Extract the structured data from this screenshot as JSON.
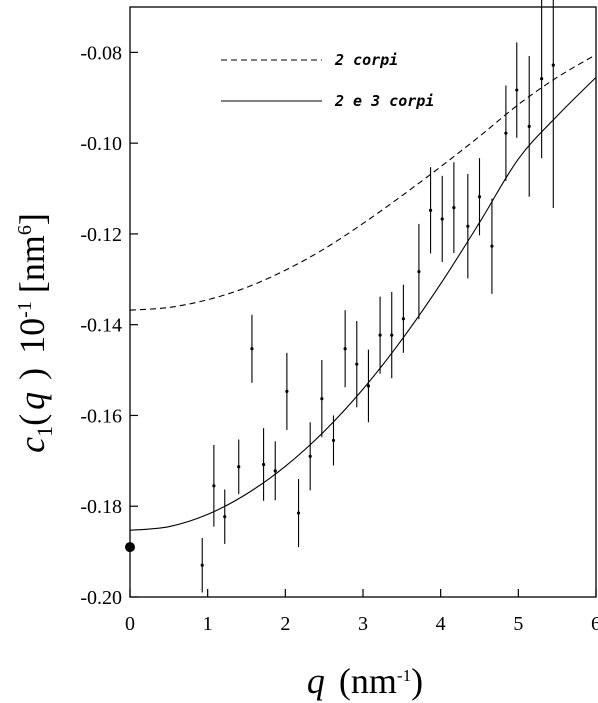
{
  "chart_data": {
    "type": "scatter",
    "title": "",
    "xlabel": {
      "var": "q",
      "unit_open": "(nm",
      "unit_exp": "-1",
      "unit_close": ")"
    },
    "ylabel": {
      "var": "c",
      "sub": "1",
      "paren_open": "(",
      "arg": "q",
      "paren_close": ")",
      "scale": "10",
      "scale_exp": "-1",
      "unit": "[nm",
      "unit_exp": "6",
      "unit_close": "]"
    },
    "xlim": [
      0,
      6
    ],
    "ylim": [
      -0.2,
      -0.07
    ],
    "x_ticks": [
      0,
      1,
      2,
      3,
      4,
      5,
      6
    ],
    "x_tick_labels": [
      "0",
      "1",
      "2",
      "3",
      "4",
      "5",
      "6"
    ],
    "y_ticks": [
      -0.2,
      -0.18,
      -0.16,
      -0.14,
      -0.12,
      -0.1,
      -0.08
    ],
    "y_tick_labels": [
      "-0.20",
      "-0.18",
      "-0.16",
      "-0.14",
      "-0.12",
      "-0.10",
      "-0.08"
    ],
    "grid": false,
    "legend_position": "top-center",
    "series": [
      {
        "name": "2 corpi",
        "kind": "line",
        "style": "dashed",
        "x": [
          0,
          0.5,
          1,
          1.5,
          2,
          2.5,
          3,
          3.5,
          4,
          4.5,
          5,
          5.5,
          6
        ],
        "y": [
          -0.1368,
          -0.1362,
          -0.1345,
          -0.1318,
          -0.128,
          -0.1233,
          -0.1177,
          -0.1116,
          -0.1052,
          -0.0985,
          -0.0915,
          -0.0855,
          -0.0805
        ]
      },
      {
        "name": "2 e 3 corpi",
        "kind": "line",
        "style": "solid",
        "x": [
          0,
          0.5,
          1,
          1.5,
          2,
          2.5,
          3,
          3.5,
          4,
          4.5,
          5,
          5.5,
          6
        ],
        "y": [
          -0.1853,
          -0.1845,
          -0.1818,
          -0.1773,
          -0.1712,
          -0.1635,
          -0.1542,
          -0.1433,
          -0.131,
          -0.1175,
          -0.1035,
          -0.094,
          -0.0855
        ]
      },
      {
        "name": "",
        "kind": "errorbar",
        "x": [
          0.93,
          1.08,
          1.22,
          1.4,
          1.57,
          1.72,
          1.87,
          2.02,
          2.17,
          2.32,
          2.47,
          2.62,
          2.77,
          2.92,
          3.07,
          3.22,
          3.37,
          3.52,
          3.72,
          3.87,
          4.02,
          4.17,
          4.35,
          4.5,
          4.66,
          4.84,
          4.98,
          5.14,
          5.3,
          5.45
        ],
        "y": [
          -0.193,
          -0.1755,
          -0.1823,
          -0.1713,
          -0.1453,
          -0.1708,
          -0.1722,
          -0.1547,
          -0.1815,
          -0.169,
          -0.1563,
          -0.1655,
          -0.1453,
          -0.1487,
          -0.1535,
          -0.1423,
          -0.1423,
          -0.1387,
          -0.1283,
          -0.1148,
          -0.1167,
          -0.1142,
          -0.1183,
          -0.1118,
          -0.1227,
          -0.0978,
          -0.0883,
          -0.0963,
          -0.0858,
          -0.0828
        ],
        "err": [
          0.006,
          0.009,
          0.006,
          0.006,
          0.0075,
          0.008,
          0.0065,
          0.0085,
          0.0075,
          0.0075,
          0.0085,
          0.0055,
          0.0085,
          0.0095,
          0.008,
          0.0085,
          0.0095,
          0.0075,
          0.0105,
          0.0095,
          0.0095,
          0.01,
          0.0115,
          0.0085,
          0.0105,
          0.0105,
          0.0105,
          0.0155,
          0.0175,
          0.0315
        ]
      },
      {
        "name": "",
        "kind": "point",
        "x": [
          0
        ],
        "y": [
          -0.189
        ]
      }
    ]
  }
}
